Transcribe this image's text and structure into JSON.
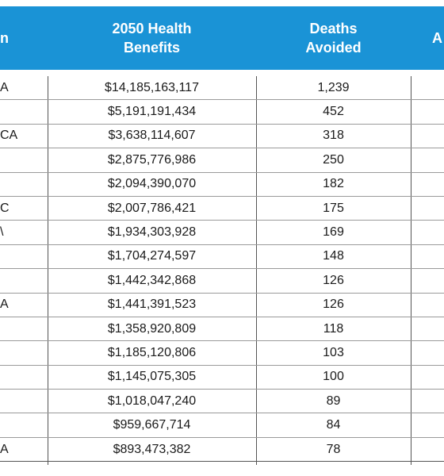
{
  "colors": {
    "header_bg": "#1a93d6",
    "header_text": "#ffffff"
  },
  "headers": [
    {
      "name": "header-region",
      "label": "n"
    },
    {
      "name": "header-health-benefits",
      "label": "2050 Health\nBenefits"
    },
    {
      "name": "header-deaths-avoided",
      "label": "Deaths\nAvoided"
    },
    {
      "name": "header-next",
      "label": "A"
    }
  ],
  "rows": [
    {
      "region": "A",
      "benefits": "$14,185,163,117",
      "deaths": "1,239"
    },
    {
      "region": "",
      "benefits": "$5,191,191,434",
      "deaths": "452"
    },
    {
      "region": "CA",
      "benefits": "$3,638,114,607",
      "deaths": "318"
    },
    {
      "region": "",
      "benefits": "$2,875,776,986",
      "deaths": "250"
    },
    {
      "region": "",
      "benefits": "$2,094,390,070",
      "deaths": "182"
    },
    {
      "region": "C",
      "benefits": "$2,007,786,421",
      "deaths": "175"
    },
    {
      "region": "\\",
      "benefits": "$1,934,303,928",
      "deaths": "169"
    },
    {
      "region": "",
      "benefits": "$1,704,274,597",
      "deaths": "148"
    },
    {
      "region": "",
      "benefits": "$1,442,342,868",
      "deaths": "126"
    },
    {
      "region": "A",
      "benefits": "$1,441,391,523",
      "deaths": "126"
    },
    {
      "region": "",
      "benefits": "$1,358,920,809",
      "deaths": "118"
    },
    {
      "region": "",
      "benefits": "$1,185,120,806",
      "deaths": "103"
    },
    {
      "region": "",
      "benefits": "$1,145,075,305",
      "deaths": "100"
    },
    {
      "region": "",
      "benefits": "$1,018,047,240",
      "deaths": "89"
    },
    {
      "region": "",
      "benefits": "$959,667,714",
      "deaths": "84"
    },
    {
      "region": "A",
      "benefits": "$893,473,382",
      "deaths": "78"
    }
  ]
}
